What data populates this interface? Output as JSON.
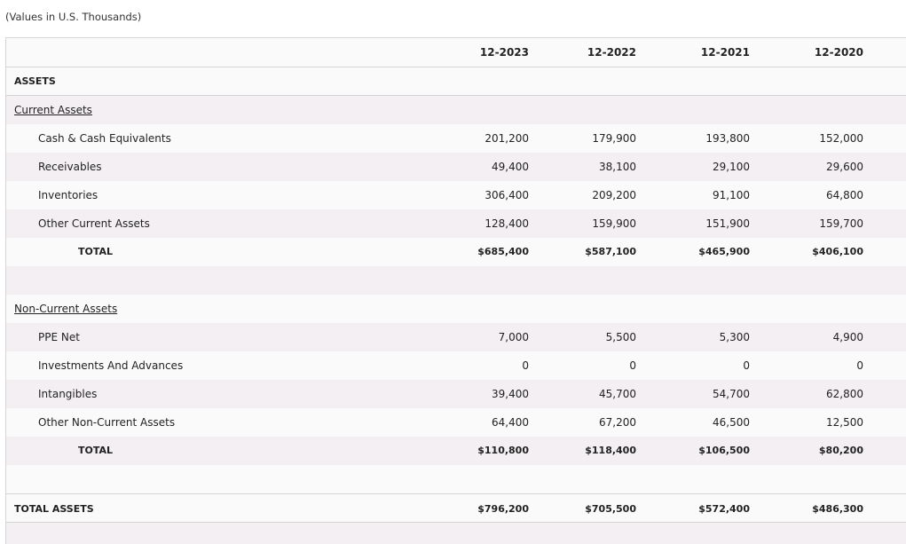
{
  "note": "(Values in U.S. Thousands)",
  "columns": [
    "12-2023",
    "12-2022",
    "12-2021",
    "12-2020"
  ],
  "section_title": "ASSETS",
  "current": {
    "title": "Current Assets",
    "items": [
      {
        "label": "Cash & Cash Equivalents",
        "values": [
          "201,200",
          "179,900",
          "193,800",
          "152,000"
        ]
      },
      {
        "label": "Receivables",
        "values": [
          "49,400",
          "38,100",
          "29,100",
          "29,600"
        ]
      },
      {
        "label": "Inventories",
        "values": [
          "306,400",
          "209,200",
          "91,100",
          "64,800"
        ]
      },
      {
        "label": "Other Current Assets",
        "values": [
          "128,400",
          "159,900",
          "151,900",
          "159,700"
        ]
      }
    ],
    "total": {
      "label": "TOTAL",
      "values": [
        "$685,400",
        "$587,100",
        "$465,900",
        "$406,100"
      ]
    }
  },
  "noncurrent": {
    "title": "Non-Current Assets",
    "items": [
      {
        "label": "PPE Net",
        "values": [
          "7,000",
          "5,500",
          "5,300",
          "4,900"
        ]
      },
      {
        "label": "Investments And Advances",
        "values": [
          "0",
          "0",
          "0",
          "0"
        ]
      },
      {
        "label": "Intangibles",
        "values": [
          "39,400",
          "45,700",
          "54,700",
          "62,800"
        ]
      },
      {
        "label": "Other Non-Current Assets",
        "values": [
          "64,400",
          "67,200",
          "46,500",
          "12,500"
        ]
      }
    ],
    "total": {
      "label": "TOTAL",
      "values": [
        "$110,800",
        "$118,400",
        "$106,500",
        "$80,200"
      ]
    }
  },
  "total_assets": {
    "label": "TOTAL ASSETS",
    "values": [
      "$796,200",
      "$705,500",
      "$572,400",
      "$486,300"
    ]
  }
}
